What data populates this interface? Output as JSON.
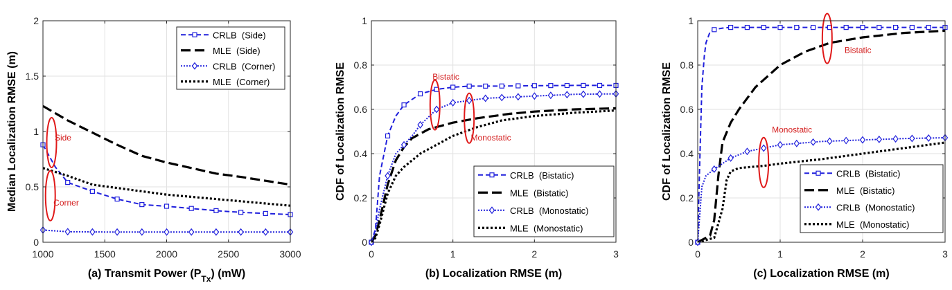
{
  "chart_data": [
    {
      "type": "line",
      "id": "a",
      "title": "",
      "xlabel": "(a) Transmit Power (P",
      "xlabel_sub": "Tx",
      "xlabel_suffix": ") (mW)",
      "ylabel": "Median Localization RMSE (m)",
      "xlim": [
        1000,
        3000
      ],
      "ylim": [
        0,
        2
      ],
      "xticks": [
        1000,
        1500,
        2000,
        2500,
        3000
      ],
      "yticks": [
        0,
        0.5,
        1,
        1.5,
        2
      ],
      "ytick_labels": [
        "0",
        "0.5",
        "1",
        "1.5",
        "2"
      ],
      "grid": true,
      "legend_position": "top-right",
      "series": [
        {
          "name": "CRLB  (Side)",
          "style": "crlb-dash",
          "color": "#1f1fdc",
          "marker": "square",
          "x": [
            1000,
            1100,
            1200,
            1400,
            1600,
            1800,
            2000,
            2200,
            2400,
            2600,
            2800,
            3000
          ],
          "y": [
            0.88,
            0.68,
            0.54,
            0.46,
            0.39,
            0.34,
            0.325,
            0.305,
            0.285,
            0.27,
            0.26,
            0.25
          ],
          "marker_x": [
            1000,
            1200,
            1400,
            1600,
            1800,
            2000,
            2200,
            2400,
            2600,
            2800,
            3000
          ]
        },
        {
          "name": "MLE  (Side)",
          "style": "mle-dash",
          "color": "#000000",
          "x": [
            1000,
            1200,
            1400,
            1600,
            1800,
            2000,
            2200,
            2400,
            2600,
            2800,
            3000
          ],
          "y": [
            1.23,
            1.1,
            0.99,
            0.88,
            0.78,
            0.72,
            0.67,
            0.62,
            0.59,
            0.555,
            0.52
          ]
        },
        {
          "name": "CRLB  (Corner)",
          "style": "crlb-dot",
          "color": "#1f1fdc",
          "marker": "diamond",
          "x": [
            1000,
            1200,
            1400,
            1600,
            1800,
            2000,
            2200,
            2400,
            2600,
            2800,
            3000
          ],
          "y": [
            0.11,
            0.095,
            0.093,
            0.092,
            0.092,
            0.092,
            0.092,
            0.092,
            0.092,
            0.092,
            0.092
          ],
          "marker_x": [
            1000,
            1200,
            1400,
            1600,
            1800,
            2000,
            2200,
            2400,
            2600,
            2800,
            3000
          ]
        },
        {
          "name": "MLE  (Corner)",
          "style": "mle-dot",
          "color": "#000000",
          "x": [
            1000,
            1200,
            1400,
            1600,
            1800,
            2000,
            2200,
            2400,
            2600,
            2800,
            3000
          ],
          "y": [
            0.67,
            0.6,
            0.52,
            0.49,
            0.46,
            0.43,
            0.41,
            0.39,
            0.37,
            0.35,
            0.33
          ]
        }
      ],
      "annotations": [
        {
          "label": "Side",
          "ellipse_x": 1070,
          "ellipse_y": 0.9,
          "text_x": 1095,
          "text_y": 0.92
        },
        {
          "label": "Corner",
          "ellipse_x": 1060,
          "ellipse_y": 0.42,
          "text_x": 1085,
          "text_y": 0.33
        }
      ]
    },
    {
      "type": "line",
      "id": "b",
      "title": "",
      "xlabel": "(b) Localization RMSE (m)",
      "ylabel": "CDF of Localization RMSE",
      "xlim": [
        0,
        3
      ],
      "ylim": [
        0,
        1
      ],
      "xticks": [
        0,
        1,
        2,
        3
      ],
      "yticks": [
        0,
        0.2,
        0.4,
        0.6,
        0.8,
        1
      ],
      "ytick_labels": [
        "0",
        "0.2",
        "0.4",
        "0.6",
        "0.8",
        "1"
      ],
      "grid": true,
      "legend_position": "bottom-right",
      "series": [
        {
          "name": "CRLB  (Bistatic)",
          "style": "crlb-dash",
          "color": "#1f1fdc",
          "marker": "square",
          "x": [
            0,
            0.05,
            0.1,
            0.2,
            0.3,
            0.4,
            0.6,
            0.8,
            1.0,
            1.2,
            1.5,
            2.0,
            2.5,
            3.0
          ],
          "y": [
            0,
            0.06,
            0.3,
            0.48,
            0.57,
            0.62,
            0.67,
            0.69,
            0.7,
            0.705,
            0.705,
            0.707,
            0.708,
            0.708
          ],
          "marker_x": [
            0,
            0.2,
            0.4,
            0.6,
            0.8,
            1.0,
            1.2,
            1.4,
            1.6,
            1.8,
            2.0,
            2.2,
            2.4,
            2.6,
            2.8,
            3.0
          ]
        },
        {
          "name": "MLE  (Bistatic)",
          "style": "mle-dash",
          "color": "#000000",
          "x": [
            0,
            0.05,
            0.1,
            0.2,
            0.3,
            0.4,
            0.5,
            0.7,
            1.0,
            1.3,
            1.7,
            2.0,
            2.5,
            3.0
          ],
          "y": [
            0,
            0.03,
            0.1,
            0.26,
            0.37,
            0.43,
            0.47,
            0.51,
            0.54,
            0.56,
            0.58,
            0.59,
            0.6,
            0.605
          ]
        },
        {
          "name": "CRLB  (Monostatic)",
          "style": "crlb-dot",
          "color": "#1f1fdc",
          "marker": "diamond",
          "x": [
            0,
            0.05,
            0.1,
            0.2,
            0.3,
            0.4,
            0.5,
            0.6,
            0.8,
            1.0,
            1.4,
            2.0,
            2.5,
            3.0
          ],
          "y": [
            0,
            0.05,
            0.15,
            0.3,
            0.4,
            0.44,
            0.48,
            0.53,
            0.6,
            0.63,
            0.65,
            0.66,
            0.668,
            0.67
          ],
          "marker_x": [
            0,
            0.2,
            0.4,
            0.6,
            0.8,
            1.0,
            1.2,
            1.4,
            1.6,
            1.8,
            2.0,
            2.2,
            2.4,
            2.6,
            2.8,
            3.0
          ]
        },
        {
          "name": "MLE  (Monostatic)",
          "style": "mle-dot",
          "color": "#000000",
          "x": [
            0,
            0.05,
            0.1,
            0.2,
            0.3,
            0.4,
            0.6,
            0.8,
            1.0,
            1.3,
            1.6,
            2.0,
            2.5,
            3.0
          ],
          "y": [
            0,
            0.02,
            0.08,
            0.22,
            0.3,
            0.34,
            0.4,
            0.44,
            0.48,
            0.52,
            0.55,
            0.57,
            0.585,
            0.595
          ]
        }
      ],
      "annotations": [
        {
          "label": "Bistatic",
          "ellipse_x": 0.78,
          "ellipse_y": 0.62,
          "text_x": 0.75,
          "text_y": 0.735
        },
        {
          "label": "Monostatic",
          "ellipse_x": 1.2,
          "ellipse_y": 0.56,
          "text_x": 1.22,
          "text_y": 0.46
        }
      ]
    },
    {
      "type": "line",
      "id": "c",
      "title": "",
      "xlabel": "(c) Localization RMSE (m)",
      "ylabel": "CDF of Localization RMSE",
      "xlim": [
        0,
        3
      ],
      "ylim": [
        0,
        1
      ],
      "xticks": [
        0,
        1,
        2,
        3
      ],
      "yticks": [
        0,
        0.2,
        0.4,
        0.6,
        0.8,
        1
      ],
      "ytick_labels": [
        "0",
        "0.2",
        "0.4",
        "0.6",
        "0.8",
        "1"
      ],
      "grid": true,
      "legend_position": "bottom-right",
      "series": [
        {
          "name": "CRLB  (Bistatic)",
          "style": "crlb-dash",
          "color": "#1f1fdc",
          "marker": "square",
          "x": [
            0,
            0.02,
            0.05,
            0.08,
            0.1,
            0.15,
            0.2,
            0.3,
            0.4,
            0.6,
            1.0,
            1.5,
            2.0,
            2.5,
            3.0
          ],
          "y": [
            0,
            0.3,
            0.7,
            0.84,
            0.9,
            0.95,
            0.96,
            0.967,
            0.97,
            0.97,
            0.97,
            0.97,
            0.97,
            0.97,
            0.97
          ],
          "marker_x": [
            0,
            0.2,
            0.4,
            0.6,
            0.8,
            1.0,
            1.2,
            1.4,
            1.6,
            1.8,
            2.0,
            2.2,
            2.4,
            2.6,
            2.8,
            3.0
          ]
        },
        {
          "name": "MLE  (Bistatic)",
          "style": "mle-dash",
          "color": "#000000",
          "x": [
            0,
            0.15,
            0.2,
            0.25,
            0.3,
            0.4,
            0.5,
            0.7,
            1.0,
            1.3,
            1.6,
            2.0,
            2.5,
            3.0
          ],
          "y": [
            0,
            0.03,
            0.1,
            0.3,
            0.45,
            0.54,
            0.6,
            0.7,
            0.8,
            0.86,
            0.9,
            0.925,
            0.945,
            0.955
          ]
        },
        {
          "name": "CRLB  (Monostatic)",
          "style": "crlb-dot",
          "color": "#1f1fdc",
          "marker": "diamond",
          "x": [
            0,
            0.02,
            0.05,
            0.1,
            0.2,
            0.4,
            0.6,
            0.8,
            1.0,
            1.5,
            2.0,
            2.5,
            3.0
          ],
          "y": [
            0,
            0.1,
            0.25,
            0.3,
            0.33,
            0.38,
            0.41,
            0.425,
            0.44,
            0.455,
            0.462,
            0.468,
            0.472
          ],
          "marker_x": [
            0,
            0.2,
            0.4,
            0.6,
            0.8,
            1.0,
            1.2,
            1.4,
            1.6,
            1.8,
            2.0,
            2.2,
            2.4,
            2.6,
            2.8,
            3.0
          ]
        },
        {
          "name": "MLE  (Monostatic)",
          "style": "mle-dot",
          "color": "#000000",
          "x": [
            0,
            0.2,
            0.3,
            0.35,
            0.4,
            0.5,
            0.8,
            1.0,
            1.5,
            2.0,
            2.5,
            3.0
          ],
          "y": [
            0,
            0.02,
            0.15,
            0.28,
            0.32,
            0.335,
            0.345,
            0.355,
            0.375,
            0.4,
            0.425,
            0.45
          ]
        }
      ],
      "annotations": [
        {
          "label": "Bistatic",
          "ellipse_x": 1.57,
          "ellipse_y": 0.92,
          "text_x": 1.78,
          "text_y": 0.855
        },
        {
          "label": "Monostatic",
          "ellipse_x": 0.8,
          "ellipse_y": 0.36,
          "text_x": 0.9,
          "text_y": 0.495
        }
      ]
    }
  ]
}
